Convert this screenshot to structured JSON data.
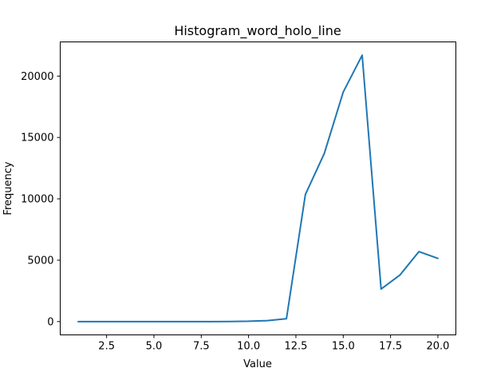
{
  "chart_data": {
    "type": "line",
    "title": "Histogram_word_holo_line",
    "xlabel": "Value",
    "ylabel": "Frequency",
    "xlim": [
      0.05,
      20.95
    ],
    "ylim": [
      -1085,
      22785
    ],
    "xticks": [
      2.5,
      5.0,
      7.5,
      10.0,
      12.5,
      15.0,
      17.5,
      20.0
    ],
    "xtick_labels": [
      "2.5",
      "5.0",
      "7.5",
      "10.0",
      "12.5",
      "15.0",
      "17.5",
      "20.0"
    ],
    "yticks": [
      0,
      5000,
      10000,
      15000,
      20000
    ],
    "ytick_labels": [
      "0",
      "5000",
      "10000",
      "15000",
      "20000"
    ],
    "grid": false,
    "series": [
      {
        "color": "#1f77b4",
        "x": [
          1,
          2,
          3,
          4,
          5,
          6,
          7,
          8,
          9,
          10,
          11,
          12,
          13,
          14,
          15,
          16,
          17,
          18,
          19,
          20
        ],
        "y": [
          0,
          0,
          0,
          0,
          0,
          0,
          0,
          0,
          5,
          25,
          80,
          230,
          10350,
          13700,
          18700,
          21700,
          2650,
          3800,
          5700,
          5150
        ]
      }
    ]
  }
}
